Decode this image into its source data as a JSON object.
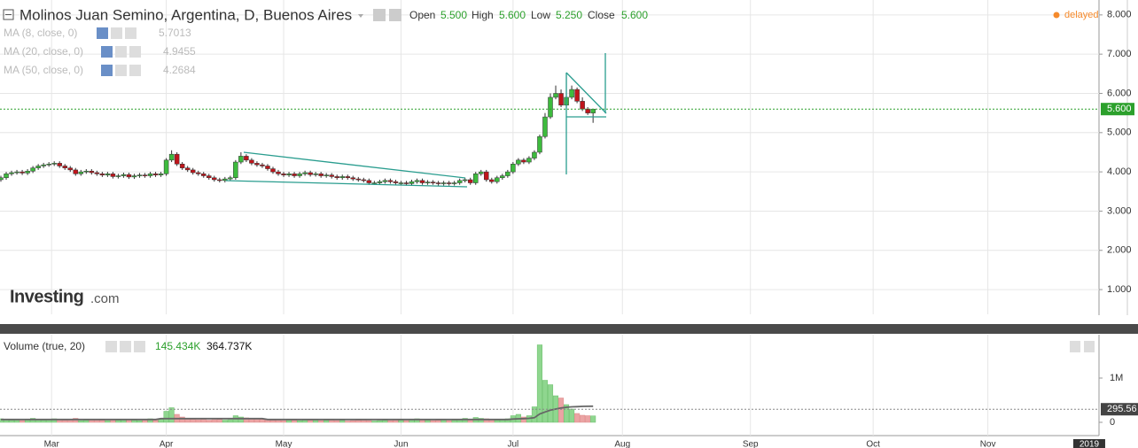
{
  "logo": {
    "name": "Investing",
    "suffix": ".com"
  },
  "chart_data": [
    {
      "type": "candlestick",
      "title": "Molinos Juan Semino, Argentina, D, Buenos Aires",
      "ohlc": [
        {
          "name": "Open",
          "value": "5.500"
        },
        {
          "name": "High",
          "value": "5.600"
        },
        {
          "name": "Low",
          "value": "5.250"
        },
        {
          "name": "Close",
          "value": "5.600"
        }
      ],
      "indicators": [
        {
          "name": "MA (8, close, 0)",
          "value": "5.7013"
        },
        {
          "name": "MA (20, close, 0)",
          "value": "4.9455"
        },
        {
          "name": "MA (50, close, 0)",
          "value": "4.2684"
        }
      ],
      "status": "delayed",
      "up_color": "#3dbb3d",
      "down_color": "#c0151b",
      "x": [
        0,
        1,
        2,
        3,
        4,
        5,
        6,
        7,
        8,
        9,
        10,
        11,
        12,
        13,
        14,
        15,
        16,
        17,
        18,
        19,
        20,
        21,
        22,
        23,
        24,
        25,
        26,
        27,
        28,
        29,
        30,
        31,
        32,
        33,
        34,
        35,
        36,
        37,
        38,
        39,
        40,
        41,
        42,
        43,
        44,
        45,
        46,
        47,
        48,
        49,
        50,
        51,
        52,
        53,
        54,
        55,
        56,
        57,
        58,
        59,
        60,
        61,
        62,
        63,
        64,
        65,
        66,
        67,
        68,
        69,
        70,
        71,
        72,
        73,
        74,
        75,
        76,
        77,
        78,
        79,
        80,
        81,
        82,
        83,
        84,
        85,
        86,
        87,
        88,
        89,
        90,
        91,
        92,
        93,
        94,
        95,
        96,
        97,
        98,
        99,
        100,
        101,
        102,
        103,
        104,
        105,
        106,
        107,
        108,
        109,
        110,
        111
      ],
      "open": [
        3.8,
        3.85,
        3.95,
        3.98,
        4.0,
        3.97,
        4.02,
        4.1,
        4.15,
        4.18,
        4.2,
        4.22,
        4.15,
        4.1,
        4.05,
        3.95,
        4.0,
        4.02,
        3.98,
        3.95,
        3.92,
        3.95,
        3.88,
        3.9,
        3.93,
        3.87,
        3.9,
        3.92,
        3.9,
        3.95,
        3.92,
        3.95,
        4.3,
        4.45,
        4.2,
        4.1,
        4.05,
        3.98,
        3.95,
        3.9,
        3.85,
        3.8,
        3.78,
        3.82,
        3.85,
        4.25,
        4.4,
        4.3,
        4.22,
        4.18,
        4.15,
        4.08,
        4.0,
        3.95,
        3.92,
        3.95,
        3.9,
        3.95,
        3.98,
        3.93,
        3.95,
        3.9,
        3.92,
        3.88,
        3.85,
        3.88,
        3.85,
        3.82,
        3.8,
        3.78,
        3.72,
        3.72,
        3.75,
        3.78,
        3.75,
        3.72,
        3.72,
        3.7,
        3.75,
        3.78,
        3.72,
        3.74,
        3.72,
        3.7,
        3.72,
        3.7,
        3.72,
        3.78,
        3.8,
        3.72,
        3.95,
        4.0,
        3.8,
        3.75,
        3.85,
        3.9,
        4.0,
        4.2,
        4.3,
        4.25,
        4.35,
        4.5,
        4.9,
        5.4,
        5.9,
        6.0,
        5.7,
        5.9,
        6.1,
        5.8,
        5.6,
        5.5
      ],
      "high": [
        3.9,
        4.0,
        4.03,
        4.05,
        4.05,
        4.07,
        4.15,
        4.2,
        4.23,
        4.25,
        4.27,
        4.27,
        4.2,
        4.15,
        4.1,
        4.05,
        4.07,
        4.07,
        4.03,
        4.0,
        4.0,
        4.0,
        3.95,
        3.98,
        3.98,
        3.95,
        3.97,
        3.97,
        4.0,
        4.0,
        4.0,
        4.35,
        4.55,
        4.5,
        4.25,
        4.15,
        4.1,
        4.03,
        4.0,
        3.95,
        3.9,
        3.85,
        3.87,
        3.9,
        4.3,
        4.5,
        4.45,
        4.35,
        4.27,
        4.23,
        4.2,
        4.13,
        4.05,
        4.0,
        4.0,
        4.0,
        4.0,
        4.03,
        4.03,
        4.0,
        4.0,
        3.97,
        3.97,
        3.93,
        3.93,
        3.93,
        3.9,
        3.87,
        3.85,
        3.83,
        3.77,
        3.8,
        3.83,
        3.83,
        3.8,
        3.77,
        3.77,
        3.8,
        3.83,
        3.83,
        3.79,
        3.79,
        3.77,
        3.77,
        3.77,
        3.77,
        3.83,
        3.85,
        3.85,
        4.0,
        4.05,
        4.05,
        3.85,
        3.9,
        3.95,
        4.05,
        4.25,
        4.35,
        4.35,
        4.4,
        4.55,
        4.95,
        5.5,
        6.0,
        6.2,
        6.1,
        6.5,
        6.2,
        6.15,
        5.9,
        5.65,
        5.6
      ],
      "low": [
        3.75,
        3.8,
        3.9,
        3.93,
        3.92,
        3.92,
        3.97,
        4.05,
        4.1,
        4.13,
        4.15,
        4.1,
        4.05,
        4.0,
        3.9,
        3.9,
        3.95,
        3.93,
        3.9,
        3.87,
        3.87,
        3.83,
        3.83,
        3.85,
        3.82,
        3.82,
        3.85,
        3.85,
        3.85,
        3.87,
        3.87,
        3.9,
        4.25,
        4.15,
        4.05,
        4.0,
        3.93,
        3.9,
        3.85,
        3.8,
        3.75,
        3.73,
        3.73,
        3.77,
        3.8,
        4.2,
        4.25,
        4.17,
        4.13,
        4.1,
        4.03,
        3.95,
        3.9,
        3.87,
        3.87,
        3.85,
        3.85,
        3.9,
        3.88,
        3.88,
        3.85,
        3.85,
        3.83,
        3.8,
        3.8,
        3.8,
        3.77,
        3.75,
        3.73,
        3.67,
        3.67,
        3.67,
        3.7,
        3.7,
        3.67,
        3.67,
        3.65,
        3.65,
        3.7,
        3.67,
        3.67,
        3.67,
        3.65,
        3.65,
        3.65,
        3.65,
        3.67,
        3.73,
        3.67,
        3.67,
        3.9,
        3.75,
        3.7,
        3.7,
        3.8,
        3.85,
        3.95,
        4.15,
        4.2,
        4.2,
        4.3,
        4.45,
        4.85,
        5.35,
        5.85,
        5.65,
        5.65,
        5.85,
        5.75,
        5.55,
        5.45,
        5.25
      ],
      "close": [
        3.85,
        3.95,
        3.98,
        4.0,
        3.97,
        4.02,
        4.1,
        4.15,
        4.18,
        4.2,
        4.22,
        4.15,
        4.1,
        4.05,
        3.95,
        4.0,
        4.02,
        3.98,
        3.95,
        3.92,
        3.95,
        3.88,
        3.9,
        3.93,
        3.87,
        3.9,
        3.92,
        3.9,
        3.95,
        3.92,
        3.95,
        4.3,
        4.45,
        4.2,
        4.1,
        4.05,
        3.98,
        3.95,
        3.9,
        3.85,
        3.8,
        3.78,
        3.82,
        3.85,
        4.25,
        4.4,
        4.3,
        4.22,
        4.18,
        4.15,
        4.08,
        4.0,
        3.95,
        3.92,
        3.95,
        3.9,
        3.95,
        3.98,
        3.93,
        3.95,
        3.9,
        3.92,
        3.88,
        3.85,
        3.88,
        3.85,
        3.82,
        3.8,
        3.78,
        3.72,
        3.72,
        3.75,
        3.78,
        3.75,
        3.72,
        3.72,
        3.7,
        3.75,
        3.78,
        3.72,
        3.74,
        3.72,
        3.7,
        3.72,
        3.7,
        3.72,
        3.78,
        3.8,
        3.72,
        3.95,
        4.0,
        3.8,
        3.75,
        3.85,
        3.9,
        4.0,
        4.2,
        4.3,
        4.25,
        4.35,
        4.5,
        4.9,
        5.4,
        5.9,
        6.0,
        5.7,
        5.9,
        6.1,
        5.8,
        5.6,
        5.5,
        5.6
      ],
      "xlim": [
        0,
        206
      ],
      "xticks": [
        {
          "value": 9.5,
          "label": "Mar"
        },
        {
          "value": 31,
          "label": "Apr"
        },
        {
          "value": 53,
          "label": "May"
        },
        {
          "value": 75,
          "label": "Jun"
        },
        {
          "value": 96,
          "label": "Jul"
        },
        {
          "value": 116.5,
          "label": "Aug"
        },
        {
          "value": 140.5,
          "label": "Sep"
        },
        {
          "value": 163.5,
          "label": "Oct"
        },
        {
          "value": 185,
          "label": "Nov"
        },
        {
          "value": 204,
          "label": "2019"
        }
      ],
      "ylim": [
        0.37,
        8.38
      ],
      "yticks": [
        {
          "value": 1,
          "label": "1.000"
        },
        {
          "value": 2,
          "label": "2.000"
        },
        {
          "value": 3,
          "label": "3.000"
        },
        {
          "value": 4,
          "label": "4.000"
        },
        {
          "value": 5,
          "label": "5.000"
        },
        {
          "value": 6,
          "label": "6.000"
        },
        {
          "value": 7,
          "label": "7.000"
        },
        {
          "value": 8,
          "label": "8.000"
        }
      ],
      "last_price": {
        "value": 5.6,
        "label": "5.600"
      },
      "grid": true
    },
    {
      "type": "bar",
      "title": "Volume (true, 20)",
      "legend_values": [
        "145.434K",
        "364.737K"
      ],
      "up_color": "#8fd68f",
      "down_color": "#eba4a4",
      "values": [
        80000,
        60000,
        50000,
        70000,
        40000,
        60000,
        90000,
        70000,
        50000,
        60000,
        80000,
        70000,
        50000,
        60000,
        90000,
        40000,
        50000,
        60000,
        70000,
        50000,
        40000,
        60000,
        50000,
        70000,
        60000,
        50000,
        40000,
        60000,
        80000,
        50000,
        70000,
        250000,
        330000,
        180000,
        120000,
        90000,
        70000,
        60000,
        80000,
        50000,
        60000,
        70000,
        50000,
        60000,
        150000,
        120000,
        100000,
        80000,
        90000,
        70000,
        60000,
        50000,
        70000,
        40000,
        60000,
        50000,
        40000,
        60000,
        50000,
        70000,
        40000,
        50000,
        60000,
        40000,
        50000,
        30000,
        40000,
        50000,
        60000,
        40000,
        30000,
        40000,
        50000,
        40000,
        60000,
        50000,
        40000,
        70000,
        80000,
        60000,
        50000,
        40000,
        50000,
        60000,
        40000,
        50000,
        70000,
        90000,
        60000,
        110000,
        90000,
        80000,
        60000,
        50000,
        70000,
        80000,
        150000,
        180000,
        120000,
        150000,
        350000,
        1750000,
        950000,
        850000,
        600000,
        550000,
        400000,
        300000,
        200000,
        160000,
        150000,
        145434
      ],
      "ma": [
        65000,
        65000,
        65000,
        65000,
        65000,
        65000,
        65000,
        65000,
        65000,
        65000,
        65000,
        65000,
        65000,
        65000,
        65000,
        65000,
        65000,
        65000,
        65000,
        65000,
        65000,
        65000,
        65000,
        65000,
        65000,
        65000,
        65000,
        65000,
        65000,
        65000,
        85000,
        85000,
        85000,
        85000,
        85000,
        85000,
        85000,
        85000,
        85000,
        85000,
        85000,
        85000,
        85000,
        85000,
        85000,
        85000,
        85000,
        85000,
        85000,
        85000,
        65000,
        65000,
        65000,
        65000,
        65000,
        65000,
        65000,
        65000,
        65000,
        65000,
        65000,
        65000,
        65000,
        65000,
        65000,
        65000,
        65000,
        65000,
        65000,
        65000,
        65000,
        65000,
        65000,
        65000,
        65000,
        65000,
        65000,
        65000,
        65000,
        65000,
        65000,
        65000,
        65000,
        65000,
        65000,
        65000,
        65000,
        65000,
        65000,
        65000,
        65000,
        65000,
        65000,
        65000,
        65000,
        65000,
        75000,
        80000,
        85000,
        90000,
        105000,
        190000,
        235000,
        275000,
        300000,
        325000,
        340000,
        350000,
        355000,
        360000,
        363000,
        364737
      ],
      "ma_color": "#666666",
      "ylim": [
        0,
        1940000
      ],
      "yticks": [
        {
          "value": 0,
          "label": "0"
        },
        {
          "value": 1000000,
          "label": "1M"
        }
      ],
      "current": {
        "value": 295560,
        "label": "295.56"
      }
    }
  ]
}
